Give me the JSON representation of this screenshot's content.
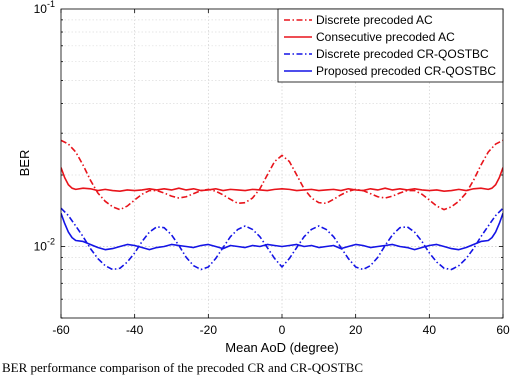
{
  "chart_data": {
    "type": "line",
    "title": "",
    "xlabel": "Mean AoD (degree)",
    "ylabel": "BER",
    "xlim": [
      -60,
      60
    ],
    "ylim": [
      0.005,
      0.1
    ],
    "yscale": "log",
    "grid": true,
    "legend_position": "top-right",
    "x_ticks": [
      -60,
      -40,
      -20,
      0,
      20,
      40,
      60
    ],
    "x_tick_labels": [
      "-60",
      "-40",
      "-20",
      "0",
      "20",
      "40",
      "60"
    ],
    "y_major_ticks": [
      {
        "value": 0.1,
        "base": "10",
        "exp": "-1"
      },
      {
        "value": 0.01,
        "base": "10",
        "exp": "-2"
      }
    ],
    "series": [
      {
        "name": "Discrete precoded AC",
        "color": "#e8141b",
        "line_style": "dash-dot",
        "x": [
          -60,
          -58,
          -56,
          -54,
          -52,
          -50,
          -48,
          -46,
          -44,
          -42,
          -40,
          -38,
          -36,
          -34,
          -32,
          -30,
          -28,
          -26,
          -24,
          -22,
          -20,
          -18,
          -16,
          -14,
          -12,
          -10,
          -8,
          -6,
          -4,
          -2,
          0,
          2,
          4,
          6,
          8,
          10,
          12,
          14,
          16,
          18,
          20,
          22,
          24,
          26,
          28,
          30,
          32,
          34,
          36,
          38,
          40,
          42,
          44,
          46,
          48,
          50,
          52,
          54,
          56,
          58,
          60
        ],
        "y": [
          0.028,
          0.027,
          0.025,
          0.022,
          0.019,
          0.0168,
          0.0155,
          0.0147,
          0.0143,
          0.0148,
          0.0157,
          0.0166,
          0.0172,
          0.0172,
          0.0168,
          0.0163,
          0.016,
          0.0162,
          0.0167,
          0.0172,
          0.0174,
          0.0171,
          0.0165,
          0.0158,
          0.0152,
          0.0153,
          0.016,
          0.0175,
          0.02,
          0.0228,
          0.0242,
          0.0228,
          0.02,
          0.0175,
          0.016,
          0.0153,
          0.0152,
          0.0158,
          0.0165,
          0.0171,
          0.0174,
          0.0172,
          0.0167,
          0.0162,
          0.016,
          0.0163,
          0.0168,
          0.0172,
          0.0172,
          0.0166,
          0.0157,
          0.0148,
          0.0143,
          0.0147,
          0.0155,
          0.0168,
          0.019,
          0.022,
          0.025,
          0.027,
          0.028
        ]
      },
      {
        "name": "Consecutive precoded AC",
        "color": "#e8141b",
        "line_style": "solid",
        "x": [
          -60,
          -59,
          -58,
          -57,
          -56,
          -54,
          -52,
          -50,
          -48,
          -46,
          -44,
          -42,
          -40,
          -38,
          -36,
          -34,
          -32,
          -30,
          -28,
          -26,
          -24,
          -22,
          -20,
          -18,
          -16,
          -14,
          -12,
          -10,
          -8,
          -6,
          -4,
          -2,
          0,
          2,
          4,
          6,
          8,
          10,
          12,
          14,
          16,
          18,
          20,
          22,
          24,
          26,
          28,
          30,
          32,
          34,
          36,
          38,
          40,
          42,
          44,
          46,
          48,
          50,
          52,
          54,
          56,
          57,
          58,
          59,
          60
        ],
        "y": [
          0.0215,
          0.0195,
          0.0182,
          0.0176,
          0.0174,
          0.0176,
          0.0175,
          0.0172,
          0.0174,
          0.0172,
          0.0171,
          0.0173,
          0.0172,
          0.0173,
          0.0175,
          0.0173,
          0.0175,
          0.0173,
          0.0176,
          0.0173,
          0.0175,
          0.0172,
          0.0173,
          0.0175,
          0.0172,
          0.0174,
          0.0173,
          0.0172,
          0.0174,
          0.0173,
          0.0172,
          0.0174,
          0.0175,
          0.0174,
          0.0172,
          0.0173,
          0.0174,
          0.0172,
          0.0173,
          0.0174,
          0.0172,
          0.0175,
          0.0173,
          0.0172,
          0.0175,
          0.0173,
          0.0176,
          0.0173,
          0.0175,
          0.0173,
          0.0175,
          0.0173,
          0.0172,
          0.0173,
          0.0171,
          0.0172,
          0.0174,
          0.0172,
          0.0175,
          0.0176,
          0.0174,
          0.0176,
          0.0182,
          0.0195,
          0.0215
        ]
      },
      {
        "name": "Discrete precoded CR-QOSTBC",
        "color": "#1414e6",
        "line_style": "dash-dot",
        "x": [
          -60,
          -58,
          -56,
          -54,
          -52,
          -50,
          -48,
          -46,
          -44,
          -42,
          -40,
          -38,
          -36,
          -34,
          -32,
          -30,
          -28,
          -26,
          -24,
          -22,
          -20,
          -18,
          -16,
          -14,
          -12,
          -10,
          -8,
          -6,
          -4,
          -2,
          0,
          2,
          4,
          6,
          8,
          10,
          12,
          14,
          16,
          18,
          20,
          22,
          24,
          26,
          28,
          30,
          32,
          34,
          36,
          38,
          40,
          42,
          44,
          46,
          48,
          50,
          52,
          54,
          56,
          58,
          60
        ],
        "y": [
          0.0145,
          0.0135,
          0.0122,
          0.011,
          0.0098,
          0.0089,
          0.0083,
          0.008,
          0.0081,
          0.0086,
          0.0094,
          0.0105,
          0.0115,
          0.0121,
          0.012,
          0.0112,
          0.0101,
          0.009,
          0.0083,
          0.008,
          0.0082,
          0.0089,
          0.0099,
          0.011,
          0.0118,
          0.0122,
          0.0118,
          0.011,
          0.0099,
          0.0089,
          0.0082,
          0.0089,
          0.0099,
          0.011,
          0.0118,
          0.0122,
          0.0118,
          0.011,
          0.0099,
          0.0089,
          0.0082,
          0.008,
          0.0083,
          0.009,
          0.0101,
          0.0112,
          0.012,
          0.0121,
          0.0115,
          0.0105,
          0.0094,
          0.0086,
          0.0081,
          0.008,
          0.0083,
          0.0089,
          0.0098,
          0.011,
          0.0122,
          0.0135,
          0.0145
        ]
      },
      {
        "name": "Proposed precoded CR-QOSTBC",
        "color": "#1414e6",
        "line_style": "solid",
        "x": [
          -60,
          -59,
          -58,
          -57,
          -56,
          -54,
          -52,
          -50,
          -48,
          -46,
          -44,
          -42,
          -40,
          -38,
          -36,
          -34,
          -32,
          -30,
          -28,
          -26,
          -24,
          -22,
          -20,
          -18,
          -16,
          -14,
          -12,
          -10,
          -8,
          -6,
          -4,
          -2,
          0,
          2,
          4,
          6,
          8,
          10,
          12,
          14,
          16,
          18,
          20,
          22,
          24,
          26,
          28,
          30,
          32,
          34,
          36,
          38,
          40,
          42,
          44,
          46,
          48,
          50,
          52,
          54,
          56,
          57,
          58,
          59,
          60
        ],
        "y": [
          0.0138,
          0.0125,
          0.0115,
          0.0109,
          0.0106,
          0.0105,
          0.0102,
          0.0099,
          0.0097,
          0.0098,
          0.01,
          0.0102,
          0.0101,
          0.0099,
          0.0097,
          0.0099,
          0.01,
          0.0102,
          0.0101,
          0.01,
          0.0099,
          0.0101,
          0.0102,
          0.01,
          0.0098,
          0.0101,
          0.01,
          0.0099,
          0.0101,
          0.01,
          0.0102,
          0.0101,
          0.01,
          0.0101,
          0.0102,
          0.01,
          0.0101,
          0.0099,
          0.01,
          0.0101,
          0.0098,
          0.01,
          0.0102,
          0.0101,
          0.0099,
          0.01,
          0.0101,
          0.0102,
          0.01,
          0.0099,
          0.0097,
          0.0099,
          0.0101,
          0.0102,
          0.01,
          0.0098,
          0.0097,
          0.0099,
          0.0102,
          0.0105,
          0.0106,
          0.0109,
          0.0115,
          0.0125,
          0.0138
        ]
      }
    ]
  },
  "caption": {
    "text": "BER performance comparison of the precoded CR and CR-QOSTBC"
  }
}
